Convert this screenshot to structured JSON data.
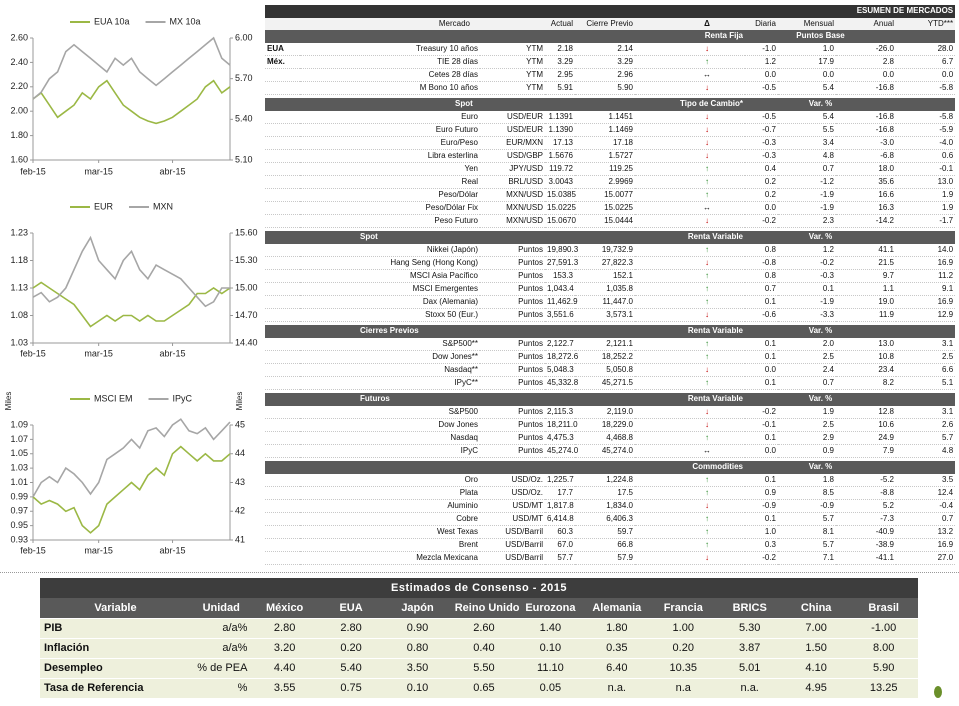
{
  "chart_data": [
    {
      "type": "line",
      "categories": [
        "feb-15",
        null,
        null,
        null,
        null,
        null,
        null,
        null,
        "mar-15",
        null,
        null,
        null,
        null,
        null,
        null,
        null,
        null,
        "abr-15",
        null,
        null,
        null,
        null,
        null,
        null,
        null
      ],
      "series": [
        {
          "name": "EUA 10a",
          "color": "#9bb845",
          "values": [
            2.1,
            2.15,
            2.05,
            1.95,
            2.0,
            2.05,
            2.15,
            2.1,
            2.2,
            2.25,
            2.15,
            2.05,
            2.0,
            1.95,
            1.92,
            1.9,
            1.92,
            1.95,
            2.0,
            2.05,
            2.1,
            2.2,
            2.25,
            2.15,
            2.2
          ]
        },
        {
          "name": "MX 10a",
          "color": "#a6a6a6",
          "axis": "y2",
          "values": [
            5.55,
            5.6,
            5.7,
            5.75,
            5.9,
            5.95,
            5.9,
            5.85,
            5.8,
            5.75,
            5.85,
            5.8,
            5.85,
            5.75,
            5.7,
            5.65,
            5.7,
            5.75,
            5.8,
            5.85,
            5.9,
            5.95,
            6.0,
            5.85,
            5.8
          ]
        }
      ],
      "ylim": [
        1.6,
        2.6
      ],
      "yticks": [
        {
          "value": 1.6,
          "label": "1.60"
        },
        {
          "value": 1.8,
          "label": "1.80"
        },
        {
          "value": 2.0,
          "label": "2.00"
        },
        {
          "value": 2.2,
          "label": "2.20"
        },
        {
          "value": 2.4,
          "label": "2.40"
        },
        {
          "value": 2.6,
          "label": "2.60"
        }
      ],
      "y2lim": [
        5.1,
        6.0
      ],
      "y2ticks": [
        {
          "value": 5.1,
          "label": "5.10"
        },
        {
          "value": 5.4,
          "label": "5.40"
        },
        {
          "value": 5.7,
          "label": "5.70"
        },
        {
          "value": 6.0,
          "label": "6.00"
        }
      ]
    },
    {
      "type": "line",
      "categories": [
        "feb-15",
        null,
        null,
        null,
        null,
        null,
        null,
        null,
        "mar-15",
        null,
        null,
        null,
        null,
        null,
        null,
        null,
        null,
        "abr-15",
        null,
        null,
        null,
        null,
        null,
        null,
        null
      ],
      "series": [
        {
          "name": "EUR",
          "color": "#9bb845",
          "values": [
            1.13,
            1.14,
            1.13,
            1.12,
            1.11,
            1.1,
            1.08,
            1.06,
            1.07,
            1.08,
            1.07,
            1.08,
            1.08,
            1.07,
            1.08,
            1.07,
            1.07,
            1.08,
            1.09,
            1.1,
            1.12,
            1.12,
            1.13,
            1.12,
            1.13
          ]
        },
        {
          "name": "MXN",
          "color": "#a6a6a6",
          "axis": "y2",
          "values": [
            14.9,
            14.95,
            14.85,
            14.9,
            15.0,
            15.2,
            15.4,
            15.55,
            15.3,
            15.2,
            15.1,
            15.3,
            15.4,
            15.2,
            15.1,
            15.25,
            15.2,
            15.15,
            15.1,
            15.0,
            14.9,
            14.8,
            14.85,
            15.0,
            15.0
          ]
        }
      ],
      "ylim": [
        1.03,
        1.23
      ],
      "yticks": [
        1.03,
        1.08,
        1.13,
        1.18,
        1.23
      ],
      "y2lim": [
        14.4,
        15.6
      ],
      "y2ticks": [
        {
          "value": 14.4,
          "label": "14.40"
        },
        {
          "value": 14.7,
          "label": "14.70"
        },
        {
          "value": 15.0,
          "label": "15.00"
        },
        {
          "value": 15.3,
          "label": "15.30"
        },
        {
          "value": 15.6,
          "label": "15.60"
        }
      ]
    },
    {
      "type": "line",
      "categories": [
        "feb-15",
        null,
        null,
        null,
        null,
        null,
        null,
        null,
        "mar-15",
        null,
        null,
        null,
        null,
        null,
        null,
        null,
        null,
        "abr-15",
        null,
        null,
        null,
        null,
        null,
        null,
        null
      ],
      "ylabel": "Miles",
      "y2label": "Miles",
      "series": [
        {
          "name": "MSCI EM",
          "color": "#9bb845",
          "values": [
            0.99,
            0.98,
            0.985,
            0.98,
            0.97,
            0.975,
            0.95,
            0.94,
            0.95,
            0.98,
            0.99,
            1.0,
            1.01,
            1.0,
            1.02,
            1.03,
            1.02,
            1.05,
            1.06,
            1.05,
            1.04,
            1.05,
            1.04,
            1.04,
            1.05
          ]
        },
        {
          "name": "IPyC",
          "color": "#a6a6a6",
          "axis": "y2",
          "values": [
            42.5,
            43.0,
            43.2,
            43.0,
            43.5,
            43.3,
            43.0,
            42.6,
            43.0,
            43.8,
            44.0,
            44.2,
            44.5,
            44.2,
            44.8,
            44.9,
            44.6,
            45.0,
            45.2,
            44.8,
            44.7,
            44.9,
            44.5,
            44.8,
            45.1
          ]
        }
      ],
      "ylim": [
        0.93,
        1.09
      ],
      "yticks": [
        0.93,
        0.95,
        0.97,
        0.99,
        1.01,
        1.03,
        1.05,
        1.07,
        1.09
      ],
      "y2lim": [
        41,
        45
      ],
      "y2ticks": [
        41,
        42,
        43,
        44,
        45
      ]
    }
  ],
  "market_table": {
    "title": "ESUMEN DE MERCADOS",
    "columns": [
      "Mercado",
      "Actual",
      "Cierre Previo",
      "Δ",
      "Diaria",
      "Mensual",
      "Anual",
      "YTD***"
    ],
    "sections": [
      {
        "name": "Renta Fija",
        "unit": "Puntos Base",
        "rows": [
          [
            "EUA",
            "Treasury 10 años",
            "YTM",
            "2.18",
            "2.14",
            "↓",
            "-1.0",
            "1.0",
            "-26.0",
            "28.0"
          ],
          [
            "Méx.",
            "TIE 28 días",
            "YTM",
            "3.29",
            "3.29",
            "↑",
            "1.2",
            "17.9",
            "2.8",
            "6.7"
          ],
          [
            null,
            "Cetes 28 días",
            "YTM",
            "2.95",
            "2.96",
            "↔",
            "0.0",
            "0.0",
            "0.0",
            "0.0"
          ],
          [
            null,
            "M Bono 10 años",
            "YTM",
            "5.91",
            "5.90",
            "↓",
            "-0.5",
            "5.4",
            "-16.8",
            "-5.8"
          ]
        ]
      },
      {
        "name": "Tipo de Cambio*",
        "sub": "Spot",
        "unit": "Var. %",
        "rows": [
          [
            null,
            "Euro",
            "USD/EUR",
            "1.1391",
            "1.1451",
            "↓",
            "-0.5",
            "5.4",
            "-16.8",
            "-5.8"
          ],
          [
            null,
            "Euro Futuro",
            "USD/EUR",
            "1.1390",
            "1.1469",
            "↓",
            "-0.7",
            "5.5",
            "-16.8",
            "-5.9"
          ],
          [
            null,
            "Euro/Peso",
            "EUR/MXN",
            "17.13",
            "17.18",
            "↓",
            "-0.3",
            "3.4",
            "-3.0",
            "-4.0"
          ],
          [
            null,
            "Libra esterlina",
            "USD/GBP",
            "1.5676",
            "1.5727",
            "↓",
            "-0.3",
            "4.8",
            "-6.8",
            "0.6"
          ],
          [
            null,
            "Yen",
            "JPY/USD",
            "119.72",
            "119.25",
            "↑",
            "0.4",
            "0.7",
            "18.0",
            "-0.1"
          ],
          [
            null,
            "Real",
            "BRL/USD",
            "3.0043",
            "2.9969",
            "↑",
            "0.2",
            "-1.2",
            "35.6",
            "13.0"
          ],
          [
            null,
            "Peso/Dólar",
            "MXN/USD",
            "15.0385",
            "15.0077",
            "↑",
            "0.2",
            "-1.9",
            "16.6",
            "1.9"
          ],
          [
            null,
            "Peso/Dólar Fix",
            "MXN/USD",
            "15.0225",
            "15.0225",
            "↔",
            "0.0",
            "-1.9",
            "16.3",
            "1.9"
          ],
          [
            null,
            "Peso Futuro",
            "MXN/USD",
            "15.0670",
            "15.0444",
            "↓",
            "-0.2",
            "2.3",
            "-14.2",
            "-1.7"
          ]
        ]
      },
      {
        "name": "Renta Variable",
        "sub": "Spot",
        "unit": "Var. %",
        "rows": [
          [
            null,
            "Nikkei (Japón)",
            "Puntos",
            "19,890.3",
            "19,732.9",
            "↑",
            "0.8",
            "1.2",
            "41.1",
            "14.0"
          ],
          [
            null,
            "Hang Seng (Hong Kong)",
            "Puntos",
            "27,591.3",
            "27,822.3",
            "↓",
            "-0.8",
            "-0.2",
            "21.5",
            "16.9"
          ],
          [
            null,
            "MSCI Asia Pacífico",
            "Puntos",
            "153.3",
            "152.1",
            "↑",
            "0.8",
            "-0.3",
            "9.7",
            "11.2"
          ],
          [
            null,
            "MSCI Emergentes",
            "Puntos",
            "1,043.4",
            "1,035.8",
            "↑",
            "0.7",
            "0.1",
            "1.1",
            "9.1"
          ],
          [
            null,
            "Dax (Alemania)",
            "Puntos",
            "11,462.9",
            "11,447.0",
            "↑",
            "0.1",
            "-1.9",
            "19.0",
            "16.9"
          ],
          [
            null,
            "Stoxx 50 (Eur.)",
            "Puntos",
            "3,551.6",
            "3,573.1",
            "↓",
            "-0.6",
            "-3.3",
            "11.9",
            "12.9"
          ]
        ]
      },
      {
        "name": "Renta Variable",
        "sub": "Cierres Previos",
        "unit": "Var. %",
        "rows": [
          [
            null,
            "S&P500**",
            "Puntos",
            "2,122.7",
            "2,121.1",
            "↑",
            "0.1",
            "2.0",
            "13.0",
            "3.1"
          ],
          [
            null,
            "Dow Jones**",
            "Puntos",
            "18,272.6",
            "18,252.2",
            "↑",
            "0.1",
            "2.5",
            "10.8",
            "2.5"
          ],
          [
            null,
            "Nasdaq**",
            "Puntos",
            "5,048.3",
            "5,050.8",
            "↓",
            "0.0",
            "2.4",
            "23.4",
            "6.6"
          ],
          [
            null,
            "IPyC**",
            "Puntos",
            "45,332.8",
            "45,271.5",
            "↑",
            "0.1",
            "0.7",
            "8.2",
            "5.1"
          ]
        ]
      },
      {
        "name": "Renta Variable",
        "sub": "Futuros",
        "unit": "Var. %",
        "rows": [
          [
            null,
            "S&P500",
            "Puntos",
            "2,115.3",
            "2,119.0",
            "↓",
            "-0.2",
            "1.9",
            "12.8",
            "3.1"
          ],
          [
            null,
            "Dow Jones",
            "Puntos",
            "18,211.0",
            "18,229.0",
            "↓",
            "-0.1",
            "2.5",
            "10.6",
            "2.6"
          ],
          [
            null,
            "Nasdaq",
            "Puntos",
            "4,475.3",
            "4,468.8",
            "↑",
            "0.1",
            "2.9",
            "24.9",
            "5.7"
          ],
          [
            null,
            "IPyC",
            "Puntos",
            "45,274.0",
            "45,274.0",
            "↔",
            "0.0",
            "0.9",
            "7.9",
            "4.8"
          ]
        ]
      },
      {
        "name": "Commodities",
        "unit": "Var. %",
        "rows": [
          [
            null,
            "Oro",
            "USD/Oz.",
            "1,225.7",
            "1,224.8",
            "↑",
            "0.1",
            "1.8",
            "-5.2",
            "3.5"
          ],
          [
            null,
            "Plata",
            "USD/Oz.",
            "17.7",
            "17.5",
            "↑",
            "0.9",
            "8.5",
            "-8.8",
            "12.4"
          ],
          [
            null,
            "Aluminio",
            "USD/MT",
            "1,817.8",
            "1,834.0",
            "↓",
            "-0.9",
            "-0.9",
            "5.2",
            "-0.4"
          ],
          [
            null,
            "Cobre",
            "USD/MT",
            "6,414.8",
            "6,406.3",
            "↑",
            "0.1",
            "5.7",
            "-7.3",
            "0.7"
          ],
          [
            null,
            "West Texas",
            "USD/Barril",
            "60.3",
            "59.7",
            "↑",
            "1.0",
            "8.1",
            "-40.9",
            "13.2"
          ],
          [
            null,
            "Brent",
            "USD/Barril",
            "67.0",
            "66.8",
            "↑",
            "0.3",
            "5.7",
            "-38.9",
            "16.9"
          ],
          [
            null,
            "Mezcla Mexicana",
            "USD/Barril",
            "57.7",
            "57.9",
            "↓",
            "-0.2",
            "7.1",
            "-41.1",
            "27.0"
          ]
        ]
      }
    ]
  },
  "consensus_table": {
    "title": "Estimados de Consenso - 2015",
    "header": [
      "Variable",
      "Unidad",
      "México",
      "EUA",
      "Japón",
      "Reino Unido",
      "Eurozona",
      "Alemania",
      "Francia",
      "BRICS",
      "China",
      "Brasil"
    ],
    "rows": [
      [
        "PIB",
        "a/a%",
        "2.80",
        "2.80",
        "0.90",
        "2.60",
        "1.40",
        "1.80",
        "1.00",
        "5.30",
        "7.00",
        "-1.00"
      ],
      [
        "Inflación",
        "a/a%",
        "3.20",
        "0.20",
        "0.80",
        "0.40",
        "0.10",
        "0.35",
        "0.20",
        "3.87",
        "1.50",
        "8.00"
      ],
      [
        "Desempleo",
        "% de PEA",
        "4.40",
        "5.40",
        "3.50",
        "5.50",
        "11.10",
        "6.40",
        "10.35",
        "5.01",
        "4.10",
        "5.90"
      ],
      [
        "Tasa de Referencia",
        "%",
        "3.55",
        "0.75",
        "0.10",
        "0.65",
        "0.05",
        "n.a.",
        "n.a",
        "n.a.",
        "4.95",
        "13.25"
      ]
    ]
  }
}
